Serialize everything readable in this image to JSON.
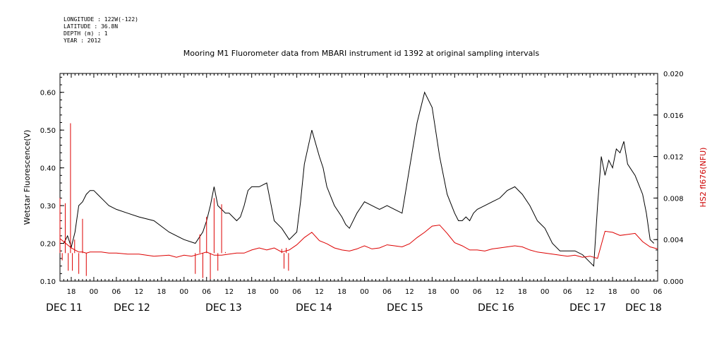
{
  "header": {
    "meta_lines": [
      "LONGITUDE : 122W(-122)",
      "LATITUDE : 36.8N",
      "DEPTH (m) : 1",
      "YEAR : 2012"
    ]
  },
  "chart_data": {
    "type": "line",
    "title": "Mooring M1 Fluorometer data from MBARI instrument id 1392 at original sampling intervals",
    "ylabel_left": "Wetstar Fluorescence(V)",
    "ylabel_right": "HS2 fl676(NFU)",
    "ylim_left": [
      0.1,
      0.65
    ],
    "ylim_right": [
      0.0,
      0.02
    ],
    "left_ticks": [
      "0.10",
      "0.20",
      "0.30",
      "0.40",
      "0.50",
      "0.60"
    ],
    "right_ticks": [
      "0.000",
      "0.004",
      "0.008",
      "0.012",
      "0.016",
      "0.020"
    ],
    "x_unit": "hours from Dec 11 00:00, 2012",
    "xlim": [
      15,
      174
    ],
    "hour_ticks": [
      "18",
      "00",
      "06",
      "12",
      "18",
      "00",
      "06",
      "12",
      "18",
      "00",
      "06",
      "12",
      "18",
      "00",
      "06",
      "12",
      "18",
      "00",
      "06",
      "12",
      "18",
      "00",
      "06",
      "12",
      "18",
      "00",
      "06",
      "12",
      "18",
      "00",
      "06"
    ],
    "date_labels": [
      "DEC 11",
      "DEC 12",
      "DEC 13",
      "DEC 14",
      "DEC 15",
      "DEC 16",
      "DEC 17",
      "DEC 18"
    ],
    "grid": false,
    "colors": {
      "wetstar": "#000000",
      "hs2": "#dd0000",
      "axis_right_label": "#cc0000"
    },
    "series": [
      {
        "name": "Wetstar Fluorescence(V)",
        "axis": "left",
        "color": "#000000",
        "x": [
          16,
          17,
          18,
          19,
          20,
          21,
          22,
          23,
          24,
          25,
          27,
          28,
          30,
          33,
          36,
          40,
          44,
          48,
          51,
          53,
          54,
          55,
          56,
          57,
          58,
          59,
          60,
          61,
          62,
          63,
          64,
          65,
          66,
          68,
          70,
          72,
          74,
          76,
          78,
          79,
          80,
          82,
          84,
          85,
          86,
          88,
          90,
          91,
          92,
          94,
          96,
          98,
          100,
          102,
          104,
          106,
          108,
          110,
          112,
          114,
          116,
          118,
          120,
          121,
          122,
          123,
          124,
          125,
          126,
          128,
          130,
          132,
          134,
          136,
          138,
          140,
          142,
          144,
          146,
          148,
          150,
          152,
          154,
          156,
          157,
          158,
          159,
          160,
          161,
          162,
          163,
          164,
          165,
          166,
          168,
          170,
          171,
          172,
          173
        ],
        "y": [
          0.2,
          0.22,
          0.19,
          0.23,
          0.3,
          0.31,
          0.33,
          0.34,
          0.34,
          0.33,
          0.31,
          0.3,
          0.29,
          0.28,
          0.27,
          0.26,
          0.23,
          0.21,
          0.2,
          0.23,
          0.26,
          0.3,
          0.35,
          0.3,
          0.29,
          0.28,
          0.28,
          0.27,
          0.26,
          0.27,
          0.3,
          0.34,
          0.35,
          0.35,
          0.36,
          0.26,
          0.24,
          0.21,
          0.23,
          0.31,
          0.41,
          0.5,
          0.43,
          0.4,
          0.35,
          0.3,
          0.27,
          0.25,
          0.24,
          0.28,
          0.31,
          0.3,
          0.29,
          0.3,
          0.29,
          0.28,
          0.4,
          0.52,
          0.6,
          0.56,
          0.43,
          0.33,
          0.28,
          0.26,
          0.26,
          0.27,
          0.26,
          0.28,
          0.29,
          0.3,
          0.31,
          0.32,
          0.34,
          0.35,
          0.33,
          0.3,
          0.26,
          0.24,
          0.2,
          0.18,
          0.18,
          0.18,
          0.17,
          0.15,
          0.14,
          0.3,
          0.43,
          0.38,
          0.42,
          0.4,
          0.45,
          0.44,
          0.47,
          0.41,
          0.38,
          0.33,
          0.28,
          0.21,
          0.2
        ],
        "extra_x": [],
        "extra_y": []
      },
      {
        "name": "HS2 fl676(NFU)",
        "axis": "right",
        "color": "#dd0000",
        "x": [
          15,
          16,
          17,
          18,
          19,
          20,
          21,
          22,
          23,
          24,
          26,
          28,
          30,
          33,
          36,
          38,
          40,
          44,
          46,
          48,
          50,
          52,
          54,
          56,
          58,
          60,
          62,
          64,
          66,
          68,
          70,
          72,
          74,
          76,
          78,
          80,
          82,
          84,
          86,
          88,
          90,
          92,
          94,
          96,
          98,
          100,
          102,
          104,
          106,
          108,
          110,
          112,
          114,
          116,
          118,
          120,
          122,
          124,
          126,
          128,
          130,
          132,
          134,
          136,
          138,
          140,
          142,
          144,
          146,
          148,
          150,
          152,
          154,
          156,
          158,
          160,
          162,
          164,
          166,
          168,
          170,
          172,
          174
        ],
        "y": [
          0.0041,
          0.0038,
          0.0035,
          0.0032,
          0.003,
          0.0028,
          0.0028,
          0.0027,
          0.0028,
          0.0028,
          0.0028,
          0.0027,
          0.0027,
          0.0026,
          0.0026,
          0.0025,
          0.0024,
          0.0025,
          0.0023,
          0.0025,
          0.0024,
          0.0026,
          0.0028,
          0.0025,
          0.0025,
          0.0026,
          0.0027,
          0.0027,
          0.003,
          0.0032,
          0.003,
          0.0032,
          0.0028,
          0.003,
          0.0035,
          0.0042,
          0.0047,
          0.0039,
          0.0036,
          0.0032,
          0.003,
          0.0029,
          0.0031,
          0.0034,
          0.0031,
          0.0032,
          0.0035,
          0.0034,
          0.0033,
          0.0036,
          0.0042,
          0.0047,
          0.0053,
          0.0054,
          0.0046,
          0.0037,
          0.0034,
          0.003,
          0.003,
          0.0029,
          0.0031,
          0.0032,
          0.0033,
          0.0034,
          0.0033,
          0.003,
          0.0028,
          0.0027,
          0.0026,
          0.0025,
          0.0024,
          0.0025,
          0.0023,
          0.0024,
          0.0022,
          0.0048,
          0.0047,
          0.0044,
          0.0045,
          0.0046,
          0.0038,
          0.0033,
          0.0031
        ]
      }
    ],
    "spikes": [
      {
        "x": 15.0,
        "y": 0.008
      },
      {
        "x": 15.6,
        "y": 0.002
      },
      {
        "x": 16.4,
        "y": 0.0075
      },
      {
        "x": 17.2,
        "y": 0.001
      },
      {
        "x": 17.8,
        "y": 0.0152
      },
      {
        "x": 18.3,
        "y": 0.001
      },
      {
        "x": 18.9,
        "y": 0.004
      },
      {
        "x": 20.0,
        "y": 0.0007
      },
      {
        "x": 21.0,
        "y": 0.006
      },
      {
        "x": 22.0,
        "y": 0.0005
      },
      {
        "x": 51.0,
        "y": 0.0007
      },
      {
        "x": 52.2,
        "y": 0.0045
      },
      {
        "x": 53.0,
        "y": 0.0003
      },
      {
        "x": 54.0,
        "y": 0.0062
      },
      {
        "x": 55.0,
        "y": 0.0002
      },
      {
        "x": 56.0,
        "y": 0.008
      },
      {
        "x": 57.0,
        "y": 0.001
      },
      {
        "x": 58.0,
        "y": 0.0074
      },
      {
        "x": 59.0,
        "y": 0.0028
      },
      {
        "x": 74.0,
        "y": 0.0031
      },
      {
        "x": 74.6,
        "y": 0.0012
      },
      {
        "x": 75.2,
        "y": 0.0032
      },
      {
        "x": 75.8,
        "y": 0.001
      }
    ]
  }
}
